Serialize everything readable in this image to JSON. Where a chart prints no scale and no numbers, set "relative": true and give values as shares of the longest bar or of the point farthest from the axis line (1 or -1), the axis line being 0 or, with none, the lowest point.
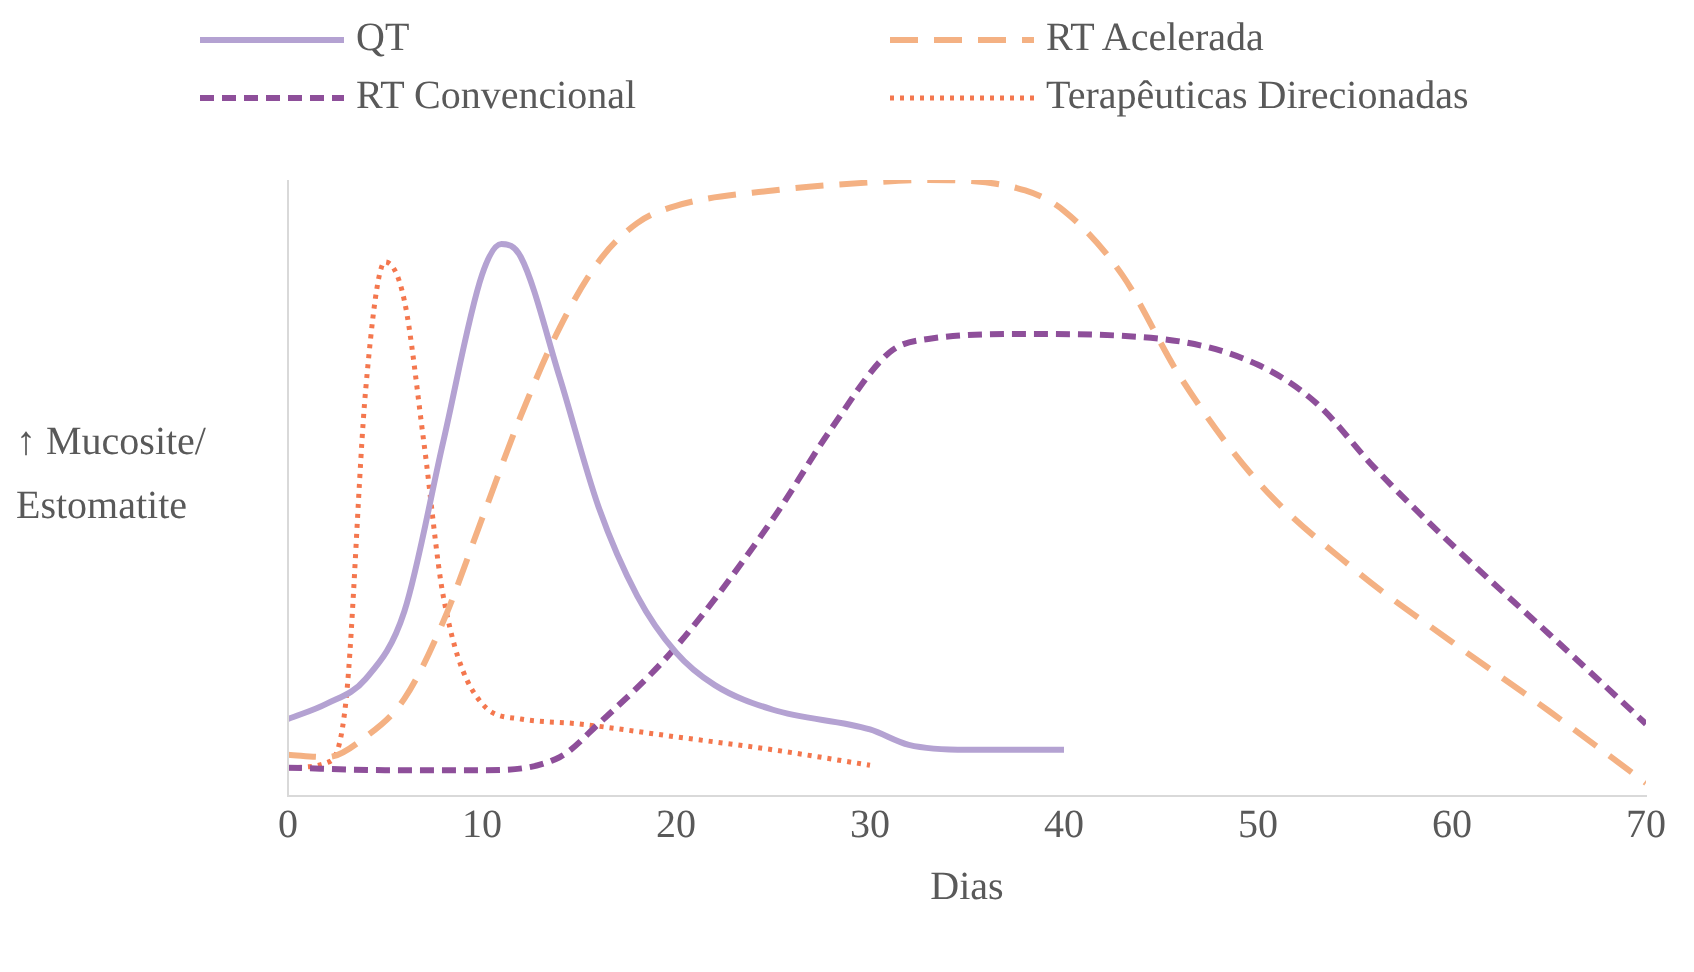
{
  "chart_data": {
    "type": "line",
    "relative": true,
    "xlabel": "Dias",
    "ylabel": "↑ Mucosite/ Estomatite",
    "xlim": [
      0,
      70
    ],
    "xticks": [
      0,
      10,
      20,
      30,
      40,
      50,
      60,
      70
    ],
    "grid": false,
    "legend": "top",
    "marker": "none",
    "series": [
      {
        "name": "QT",
        "color": "#b4a2d2",
        "line_style": "solid",
        "x": [
          0,
          2,
          4,
          6,
          8,
          10,
          11,
          12,
          14,
          16,
          18,
          20,
          22,
          25,
          30,
          32,
          35,
          40
        ],
        "values": [
          0.125,
          0.15,
          0.19,
          0.3,
          0.575,
          0.846,
          0.896,
          0.875,
          0.68,
          0.47,
          0.325,
          0.233,
          0.18,
          0.14,
          0.108,
          0.083,
          0.075,
          0.075
        ]
      },
      {
        "name": "RT Acelerada",
        "color": "#f4b183",
        "line_style": "dashed",
        "x": [
          0,
          2,
          4,
          6,
          8,
          10,
          12,
          14,
          16,
          18,
          20,
          25,
          30,
          33,
          38,
          40,
          43,
          46,
          50,
          55,
          60,
          65,
          70
        ],
        "values": [
          0.067,
          0.063,
          0.096,
          0.158,
          0.283,
          0.45,
          0.617,
          0.76,
          0.867,
          0.93,
          0.958,
          0.983,
          0.996,
          1,
          0.983,
          0.95,
          0.846,
          0.68,
          0.51,
          0.367,
          0.25,
          0.138,
          0.021
        ]
      },
      {
        "name": "RT Convencional",
        "color": "#8e4f9a",
        "line_style": "dashed",
        "x": [
          0,
          5,
          10,
          14,
          16,
          20,
          25,
          28,
          31,
          33,
          38,
          45,
          50,
          53,
          56,
          60,
          65,
          70
        ],
        "values": [
          0.046,
          0.042,
          0.042,
          0.063,
          0.117,
          0.242,
          0.45,
          0.596,
          0.72,
          0.742,
          0.75,
          0.742,
          0.7,
          0.638,
          0.533,
          0.408,
          0.263,
          0.117
        ]
      },
      {
        "name": "Terapêuticas Direcionadas",
        "color": "#f4774e",
        "line_style": "dotted",
        "x": [
          0,
          2,
          3,
          4,
          5,
          6,
          7,
          8,
          10,
          12,
          15,
          20,
          25,
          30
        ],
        "values": [
          0.046,
          0.054,
          0.158,
          0.658,
          0.867,
          0.804,
          0.575,
          0.325,
          0.15,
          0.125,
          0.117,
          0.096,
          0.075,
          0.05
        ]
      }
    ]
  }
}
